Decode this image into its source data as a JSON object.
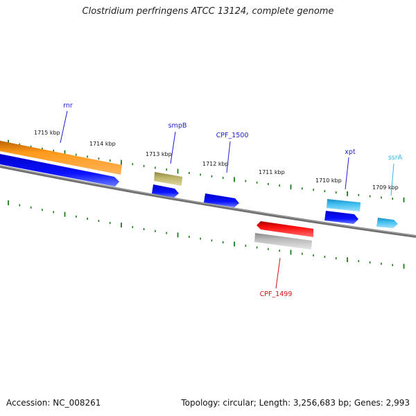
{
  "title": "Clostridium perfringens ATCC 13124, complete genome",
  "footer": {
    "accession": "Accession: NC_008261",
    "summary": "Topology: circular; Length: 3,256,683 bp; Genes: 2,993"
  },
  "ticks": [
    {
      "label": "1715 kbp"
    },
    {
      "label": "1714 kbp"
    },
    {
      "label": "1713 kbp"
    },
    {
      "label": "1712 kbp"
    },
    {
      "label": "1711 kbp"
    },
    {
      "label": "1710 kbp"
    },
    {
      "label": "1709 kbp"
    }
  ],
  "features": [
    {
      "name": "rnr",
      "label": "rnr",
      "color": "#1c1ccc"
    },
    {
      "name": "smpB",
      "label": "smpB",
      "color": "#1c1ccc"
    },
    {
      "name": "CPF_1500",
      "label": "CPF_1500",
      "color": "#1c1ccc"
    },
    {
      "name": "xpt",
      "label": "xpt",
      "color": "#1c1ccc"
    },
    {
      "name": "ssrA",
      "label": "ssrA",
      "color": "#35b5e8"
    },
    {
      "name": "CPF_1499",
      "label": "CPF_1499",
      "color": "#d01010"
    }
  ]
}
